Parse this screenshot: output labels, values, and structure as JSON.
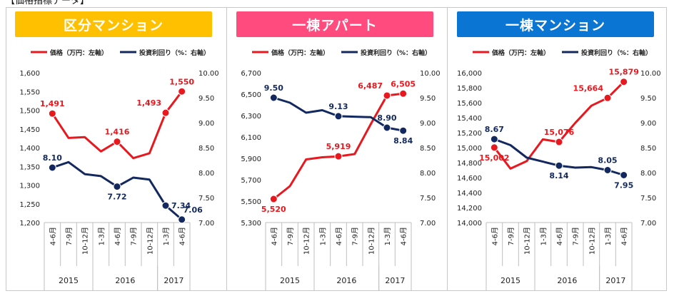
{
  "page": {
    "heading_fragment": "【価格指標データ】"
  },
  "legend": {
    "price_label": "価格（万円：左軸）",
    "yield_label": "投資利回り（%：右軸）"
  },
  "colors": {
    "price": "#e8181f",
    "yield": "#12285f",
    "grid": "#d9d9d9"
  },
  "x_axis": {
    "categories": [
      "4-6月",
      "7-9月",
      "10-12月",
      "1-3月",
      "4-6月",
      "7-9月",
      "10-12月",
      "1-3月",
      "4-6月"
    ],
    "years": [
      {
        "label": "2015",
        "start": 0,
        "end": 2
      },
      {
        "label": "2016",
        "start": 3,
        "end": 6
      },
      {
        "label": "2017",
        "start": 7,
        "end": 8
      }
    ]
  },
  "chart_data": [
    {
      "type": "line",
      "title": "区分マンション",
      "banner_color": "#ffc000",
      "y_left": {
        "min": 1200,
        "max": 1600,
        "step": 50
      },
      "y_right": {
        "min": 7.0,
        "max": 10.0,
        "step": 0.5
      },
      "y_right_ticks": [
        "7.00",
        "7.50",
        "8.00",
        "8.50",
        "9.00",
        "9.50",
        "10.00"
      ],
      "series": [
        {
          "name": "価格（万円：左軸）",
          "axis": "left",
          "values": [
            1491,
            1426,
            1428,
            1390,
            1416,
            1372,
            1385,
            1493,
            1550
          ],
          "markers": [
            0,
            4,
            7,
            8
          ],
          "labels": [
            {
              "i": 0,
              "text": "1,491",
              "pos": "above"
            },
            {
              "i": 4,
              "text": "1,416",
              "pos": "above"
            },
            {
              "i": 7,
              "text": "1,493",
              "pos": "above-left"
            },
            {
              "i": 8,
              "text": "1,550",
              "pos": "above"
            }
          ]
        },
        {
          "name": "投資利回り（%：右軸）",
          "axis": "right",
          "values": [
            8.1,
            8.21,
            7.97,
            7.93,
            7.72,
            7.9,
            7.86,
            7.34,
            7.06
          ],
          "markers": [
            0,
            4,
            7,
            8
          ],
          "labels": [
            {
              "i": 0,
              "text": "8.10",
              "pos": "above"
            },
            {
              "i": 4,
              "text": "7.72",
              "pos": "below"
            },
            {
              "i": 7,
              "text": "7.34",
              "pos": "right"
            },
            {
              "i": 8,
              "text": "7.06",
              "pos": "above-right"
            }
          ]
        }
      ]
    },
    {
      "type": "line",
      "title": "一棟アパート",
      "banner_color": "#ff4b7d",
      "y_left": {
        "min": 5300,
        "max": 6700,
        "step": 200
      },
      "y_right": {
        "min": 7.0,
        "max": 10.0,
        "step": 0.5
      },
      "y_right_ticks": [
        "7.00",
        "7.50",
        "8.00",
        "8.50",
        "9.00",
        "9.50",
        "10.00"
      ],
      "series": [
        {
          "name": "価格（万円：左軸）",
          "axis": "left",
          "values": [
            5520,
            5640,
            5890,
            5910,
            5919,
            5940,
            6220,
            6487,
            6505
          ],
          "markers": [
            0,
            4,
            7,
            8
          ],
          "labels": [
            {
              "i": 0,
              "text": "5,520",
              "pos": "below"
            },
            {
              "i": 4,
              "text": "5,919",
              "pos": "above"
            },
            {
              "i": 7,
              "text": "6,487",
              "pos": "above-left"
            },
            {
              "i": 8,
              "text": "6,505",
              "pos": "above"
            }
          ]
        },
        {
          "name": "投資利回り（%：右軸）",
          "axis": "right",
          "values": [
            9.5,
            9.4,
            9.2,
            9.25,
            9.13,
            9.12,
            9.11,
            8.9,
            8.84
          ],
          "markers": [
            0,
            4,
            7,
            8
          ],
          "labels": [
            {
              "i": 0,
              "text": "9.50",
              "pos": "above"
            },
            {
              "i": 4,
              "text": "9.13",
              "pos": "above"
            },
            {
              "i": 7,
              "text": "8.90",
              "pos": "above"
            },
            {
              "i": 8,
              "text": "8.84",
              "pos": "below"
            }
          ]
        }
      ]
    },
    {
      "type": "line",
      "title": "一棟マンション",
      "banner_color": "#0a75d2",
      "y_left": {
        "min": 14000,
        "max": 16000,
        "step": 200
      },
      "y_right": {
        "min": 7.0,
        "max": 10.0,
        "step": 0.5
      },
      "y_right_ticks": [
        "7.00",
        "7.50",
        "8.00",
        "8.50",
        "9.00",
        "9.50",
        "10.00"
      ],
      "series": [
        {
          "name": "価格（万円：左軸）",
          "axis": "left",
          "values": [
            15002,
            14720,
            14820,
            15110,
            15076,
            15330,
            15560,
            15664,
            15879
          ],
          "markers": [
            0,
            4,
            7,
            8
          ],
          "labels": [
            {
              "i": 0,
              "text": "15,002",
              "pos": "below"
            },
            {
              "i": 4,
              "text": "15,076",
              "pos": "above"
            },
            {
              "i": 7,
              "text": "15,664",
              "pos": "above-left"
            },
            {
              "i": 8,
              "text": "15,879",
              "pos": "above"
            }
          ]
        },
        {
          "name": "投資利回り（%：右軸）",
          "axis": "right",
          "values": [
            8.67,
            8.55,
            8.3,
            8.22,
            8.14,
            8.1,
            8.11,
            8.05,
            7.95
          ],
          "markers": [
            0,
            4,
            7,
            8
          ],
          "labels": [
            {
              "i": 0,
              "text": "8.67",
              "pos": "above"
            },
            {
              "i": 4,
              "text": "8.14",
              "pos": "below"
            },
            {
              "i": 7,
              "text": "8.05",
              "pos": "above"
            },
            {
              "i": 8,
              "text": "7.95",
              "pos": "below"
            }
          ]
        }
      ]
    }
  ]
}
